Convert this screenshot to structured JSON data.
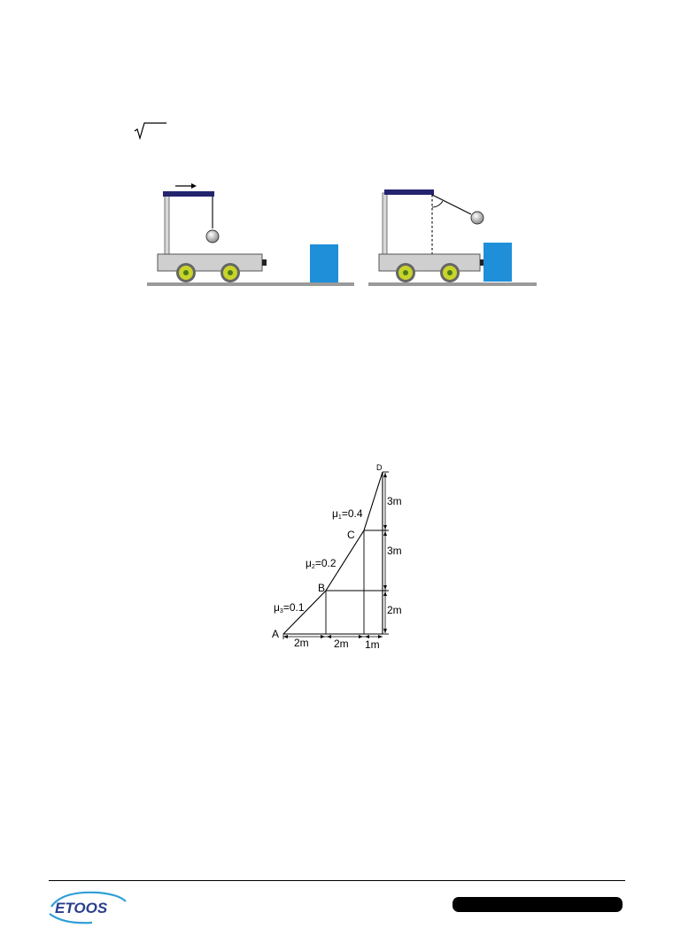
{
  "incline": {
    "labels": {
      "point_a": "A",
      "point_b": "B",
      "point_c": "C",
      "point_d": "D"
    },
    "friction": [
      {
        "symbol": "μ",
        "sub": "1",
        "value": "=0.4"
      },
      {
        "symbol": "μ",
        "sub": "2",
        "value": "=0.2"
      },
      {
        "symbol": "μ",
        "sub": "3",
        "value": "=0.1"
      }
    ],
    "horizontal_dims": [
      "2m",
      "2m",
      "1m"
    ],
    "vertical_dims": [
      "3m",
      "3m",
      "2m"
    ]
  },
  "footer": {
    "logo_text": "ETOOS"
  },
  "colors": {
    "cart_bar": "#24246e",
    "block": "#1e8fd8",
    "wheel": "#c8d42a",
    "logo_text": "#2a3f8c",
    "logo_swoosh": "#2e9fd6"
  }
}
